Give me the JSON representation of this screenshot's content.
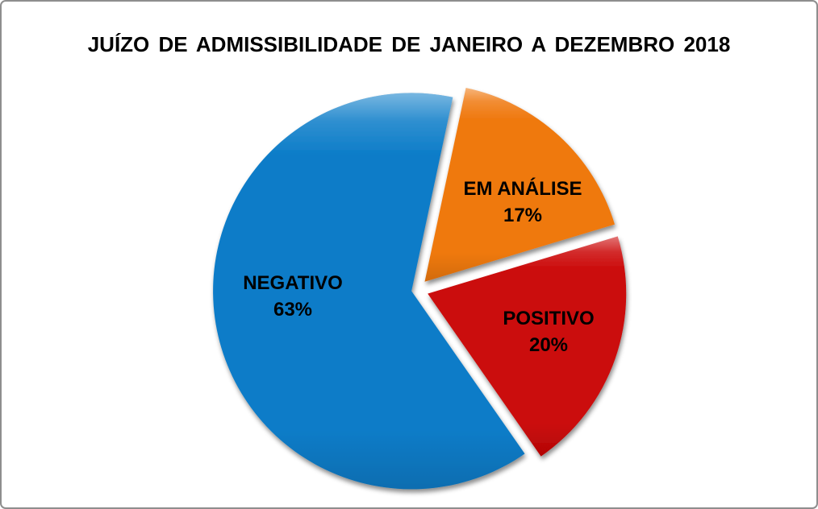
{
  "page": {
    "background": "#FFFFFF",
    "frame_border_color": "#8E8E8E",
    "text_color": "#000000"
  },
  "chart_data": {
    "type": "pie",
    "title": "JUÍZO DE ADMISSIBILIDADE DE JANEIRO A DEZEMBRO 2018",
    "exploded": true,
    "direction": "clockwise",
    "start_angle_deg": 12,
    "legend": "none",
    "data_labels": "category name and percent shown inside each slice",
    "slices": [
      {
        "label": "EM ANÁLISE",
        "value_pct": 17,
        "pct_label": "17%",
        "color": "#EF7910"
      },
      {
        "label": "POSITIVO",
        "value_pct": 20,
        "pct_label": "20%",
        "color": "#CB0707"
      },
      {
        "label": "NEGATIVO",
        "value_pct": 63,
        "pct_label": "63%",
        "color": "#0B7CC8"
      }
    ]
  }
}
